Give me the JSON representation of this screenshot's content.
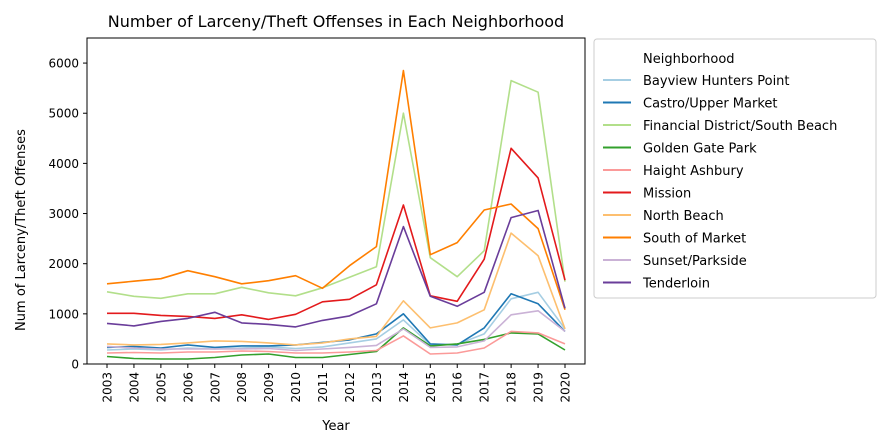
{
  "chart_data": {
    "type": "line",
    "title": "Number of Larceny/Theft Offenses in Each Neighborhood",
    "xlabel": "Year",
    "ylabel": "Num of Larceny/Theft Offenses",
    "ylim": [
      0,
      6500
    ],
    "yticks": [
      0,
      1000,
      2000,
      3000,
      4000,
      5000,
      6000
    ],
    "grid": false,
    "legend_title": "Neighborhood",
    "legend_position": "outside-right",
    "x": [
      "2003",
      "2004",
      "2005",
      "2006",
      "2007",
      "2008",
      "2009",
      "2010",
      "2011",
      "2012",
      "2013",
      "2014",
      "2015",
      "2016",
      "2017",
      "2018",
      "2019",
      "2020"
    ],
    "series": [
      {
        "name": "Bayview Hunters Point",
        "color": "#a6cee3",
        "values": [
          280,
          300,
          280,
          320,
          300,
          320,
          340,
          310,
          340,
          420,
          500,
          880,
          380,
          390,
          600,
          1300,
          1430,
          700
        ]
      },
      {
        "name": "Castro/Upper Market",
        "color": "#1f78b4",
        "values": [
          330,
          350,
          320,
          380,
          330,
          360,
          360,
          380,
          430,
          480,
          600,
          1000,
          400,
          380,
          720,
          1400,
          1200,
          650
        ]
      },
      {
        "name": "Financial District/South Beach",
        "color": "#b2df8a",
        "values": [
          1440,
          1350,
          1310,
          1400,
          1400,
          1530,
          1420,
          1360,
          1520,
          1730,
          1940,
          5000,
          2120,
          1740,
          2260,
          5650,
          5420,
          1640
        ]
      },
      {
        "name": "Golden Gate Park",
        "color": "#33a02c",
        "values": [
          150,
          110,
          100,
          100,
          130,
          180,
          200,
          130,
          130,
          190,
          250,
          720,
          360,
          400,
          490,
          620,
          600,
          280
        ]
      },
      {
        "name": "Haight Ashbury",
        "color": "#fb9a99",
        "values": [
          220,
          230,
          220,
          240,
          240,
          260,
          250,
          220,
          220,
          240,
          270,
          560,
          200,
          220,
          320,
          650,
          620,
          400
        ]
      },
      {
        "name": "Mission",
        "color": "#e31a1c",
        "values": [
          1010,
          1010,
          970,
          950,
          910,
          980,
          890,
          990,
          1240,
          1290,
          1580,
          3170,
          1360,
          1250,
          2090,
          4300,
          3710,
          1670
        ]
      },
      {
        "name": "North Beach",
        "color": "#fdbf6f",
        "values": [
          400,
          380,
          390,
          420,
          460,
          450,
          420,
          380,
          420,
          500,
          550,
          1260,
          720,
          820,
          1080,
          2610,
          2160,
          700
        ]
      },
      {
        "name": "South of Market",
        "color": "#ff7f00",
        "values": [
          1600,
          1650,
          1700,
          1860,
          1740,
          1600,
          1660,
          1760,
          1510,
          1960,
          2340,
          5850,
          2180,
          2420,
          3070,
          3190,
          2700,
          1080
        ]
      },
      {
        "name": "Sunset/Parkside",
        "color": "#cab2d6",
        "values": [
          350,
          320,
          300,
          300,
          300,
          300,
          310,
          270,
          300,
          330,
          370,
          700,
          330,
          340,
          460,
          980,
          1060,
          650
        ]
      },
      {
        "name": "Tenderloin",
        "color": "#6a3d9a",
        "values": [
          810,
          760,
          850,
          910,
          1030,
          820,
          790,
          740,
          870,
          960,
          1200,
          2740,
          1350,
          1150,
          1430,
          2920,
          3060,
          1110
        ]
      }
    ]
  }
}
